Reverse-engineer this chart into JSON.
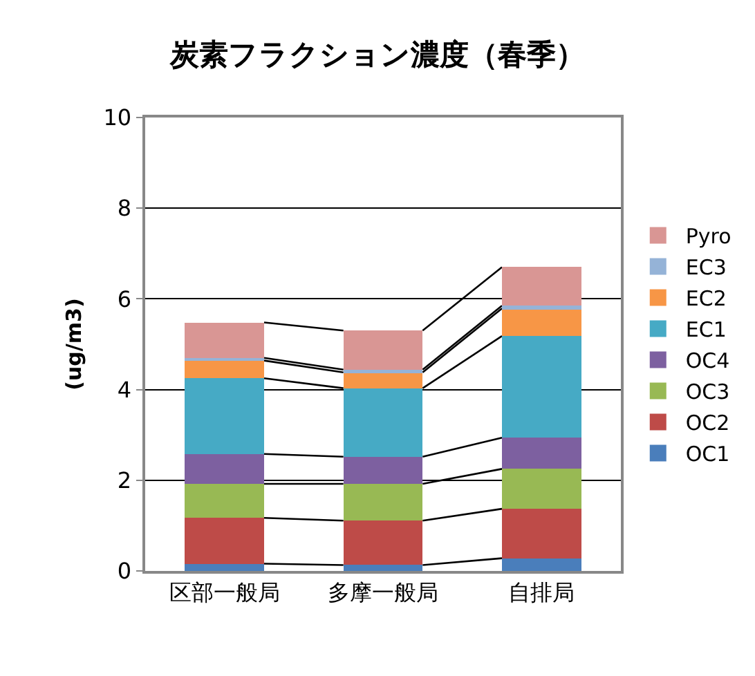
{
  "chart_data": {
    "type": "bar",
    "title": "炭素フラクション濃度（春季）",
    "ylabel": "(ug/m3)",
    "categories": [
      "区部一般局",
      "多摩一般局",
      "自排局"
    ],
    "stacked": true,
    "series": [
      {
        "name": "OC1",
        "color": "#4a7ebb",
        "values": [
          0.16,
          0.13,
          0.28
        ]
      },
      {
        "name": "OC2",
        "color": "#be4b48",
        "values": [
          1.01,
          0.98,
          1.09
        ]
      },
      {
        "name": "OC3",
        "color": "#98b954",
        "values": [
          0.75,
          0.81,
          0.88
        ]
      },
      {
        "name": "OC4",
        "color": "#7d60a0",
        "values": [
          0.66,
          0.6,
          0.69
        ]
      },
      {
        "name": "EC1",
        "color": "#46aac5",
        "values": [
          1.67,
          1.51,
          2.24
        ]
      },
      {
        "name": "EC2",
        "color": "#f79646",
        "values": [
          0.39,
          0.35,
          0.61
        ]
      },
      {
        "name": "EC3",
        "color": "#95b3d7",
        "values": [
          0.06,
          0.06,
          0.06
        ]
      },
      {
        "name": "Pyro",
        "color": "#d99694",
        "values": [
          0.78,
          0.86,
          0.85
        ]
      }
    ],
    "ylim": [
      0,
      10
    ],
    "yticks": [
      0,
      2,
      4,
      6,
      8,
      10
    ],
    "grid": "y",
    "legend": "right"
  }
}
